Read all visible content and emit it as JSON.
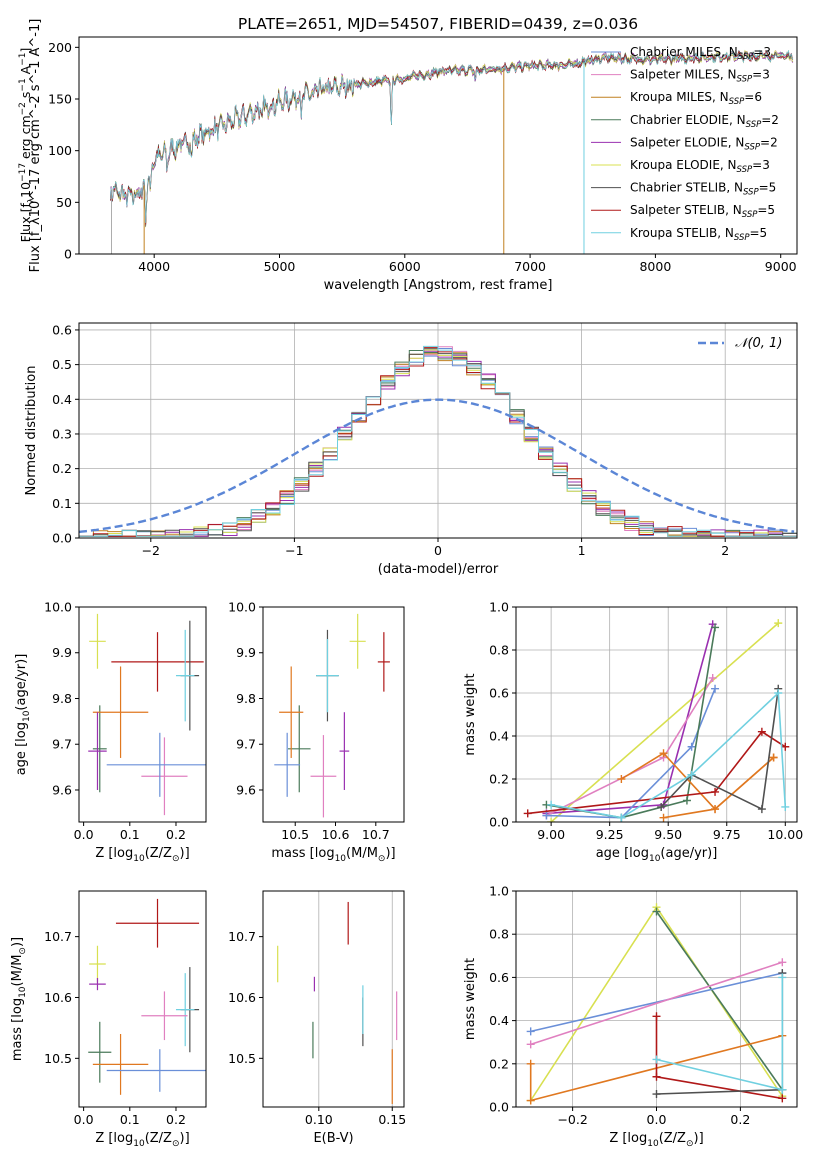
{
  "figure_title": "PLATE=2651, MJD=54507, FIBERID=0439, z=0.036",
  "colors": {
    "chabrier_miles": "#6a8fd8",
    "salpeter_miles": "#e080c0",
    "kroupa_miles": "#c08020",
    "chabrier_elodie": "#4a7a5a",
    "salpeter_elodie": "#9a30b0",
    "kroupa_elodie": "#d8e050",
    "chabrier_stelib": "#505050",
    "salpeter_stelib": "#b01818",
    "kroupa_stelib": "#70d0e0",
    "gauss": "#5b86d6",
    "orange": "#e07820"
  },
  "chart_data": [
    {
      "id": "spectrum",
      "type": "line",
      "xlabel": "wavelength [Angstrom, rest frame]",
      "ylabel": "Flux [f_λ10^-17 erg cm^-2 s^-1 A^-1]",
      "xlim": [
        3400,
        9130
      ],
      "ylim": [
        0,
        210
      ],
      "xticks": [
        4000,
        5000,
        6000,
        7000,
        8000,
        9000
      ],
      "yticks": [
        0,
        50,
        100,
        150,
        200
      ],
      "legend": "top-right",
      "legend_entries": [
        {
          "pre": "Chabrier MILES, N",
          "post": "=3",
          "color": "chabrier_miles"
        },
        {
          "pre": "Salpeter MILES, N",
          "post": "=3",
          "color": "salpeter_miles"
        },
        {
          "pre": "Kroupa MILES, N",
          "post": "=6",
          "color": "kroupa_miles"
        },
        {
          "pre": "Chabrier ELODIE, N",
          "post": "=2",
          "color": "chabrier_elodie"
        },
        {
          "pre": "Salpeter ELODIE, N",
          "post": "=2",
          "color": "salpeter_elodie"
        },
        {
          "pre": "Kroupa ELODIE, N",
          "post": "=3",
          "color": "kroupa_elodie"
        },
        {
          "pre": "Chabrier STELIB, N",
          "post": "=5",
          "color": "chabrier_stelib"
        },
        {
          "pre": "Salpeter STELIB, N",
          "post": "=5",
          "color": "salpeter_stelib"
        },
        {
          "pre": "Kroupa STELIB, N",
          "post": "=5",
          "color": "kroupa_stelib"
        }
      ],
      "legend_sub": "SSP",
      "continuum": [
        [
          3650,
          62
        ],
        [
          3800,
          55
        ],
        [
          3900,
          60
        ],
        [
          4000,
          92
        ],
        [
          4200,
          105
        ],
        [
          4500,
          122
        ],
        [
          4800,
          138
        ],
        [
          5000,
          147
        ],
        [
          5300,
          158
        ],
        [
          5600,
          164
        ],
        [
          6000,
          170
        ],
        [
          6300,
          177
        ],
        [
          6600,
          178
        ],
        [
          7000,
          182
        ],
        [
          7300,
          183
        ],
        [
          7600,
          190
        ],
        [
          8000,
          188
        ],
        [
          8500,
          191
        ],
        [
          9000,
          192
        ],
        [
          9100,
          191
        ]
      ],
      "absorptions": [
        [
          3934,
          40
        ],
        [
          3969,
          30
        ],
        [
          4102,
          15
        ],
        [
          4300,
          20
        ],
        [
          4861,
          12
        ],
        [
          5175,
          18
        ],
        [
          5270,
          10
        ],
        [
          5892,
          45
        ],
        [
          6563,
          10
        ]
      ],
      "model_cutoffs": [
        [
          7430,
          "kroupa_stelib"
        ],
        [
          6790,
          "kroupa_miles"
        ],
        [
          3920,
          "kroupa_miles"
        ]
      ]
    },
    {
      "id": "residual_hist",
      "type": "histogram",
      "xlabel": "(data-model)/error",
      "ylabel": "Normed distribution",
      "xlim": [
        -2.5,
        2.5
      ],
      "ylim": [
        0,
        0.62
      ],
      "xticks": [
        -2,
        -1,
        0,
        1,
        2
      ],
      "yticks": [
        0.0,
        0.1,
        0.2,
        0.3,
        0.4,
        0.5,
        0.6
      ],
      "grid": true,
      "bin_width": 0.1,
      "gaussian_label": "𝒩(0, 1)",
      "legend": "top-right"
    },
    {
      "id": "age_vs_Z",
      "type": "errorbar",
      "xlabel_pre": "Z [log",
      "xlabel_sub": "10",
      "xlabel_post": "(Z/Z",
      "ylabel_pre": "age  [log",
      "ylabel_sub": "10",
      "ylabel_post": "(age/yr)]",
      "xlim": [
        -0.01,
        0.265
      ],
      "ylim": [
        9.53,
        10.0
      ],
      "xticks": [
        0.0,
        0.1,
        0.2
      ],
      "yticks": [
        9.6,
        9.7,
        9.8,
        9.9,
        10.0
      ],
      "points": [
        {
          "x": 0.03,
          "y": 9.925,
          "xe": 0.018,
          "ye": 0.06,
          "color": "kroupa_elodie"
        },
        {
          "x": 0.16,
          "y": 9.88,
          "xe": 0.1,
          "ye": 0.065,
          "color": "salpeter_stelib"
        },
        {
          "x": 0.23,
          "y": 9.85,
          "xe": 0.02,
          "ye": 0.12,
          "color": "chabrier_stelib"
        },
        {
          "x": 0.22,
          "y": 9.85,
          "xe": 0.02,
          "ye": 0.1,
          "color": "kroupa_stelib"
        },
        {
          "x": 0.035,
          "y": 9.69,
          "xe": 0.015,
          "ye": 0.095,
          "color": "chabrier_elodie"
        },
        {
          "x": 0.08,
          "y": 9.77,
          "xe": 0.06,
          "ye": 0.1,
          "color": "orange"
        },
        {
          "x": 0.03,
          "y": 9.685,
          "xe": 0.02,
          "ye": 0.085,
          "color": "salpeter_elodie"
        },
        {
          "x": 0.175,
          "y": 9.63,
          "xe": 0.05,
          "ye": 0.085,
          "color": "salpeter_miles"
        },
        {
          "x": 0.165,
          "y": 9.655,
          "xe": 0.115,
          "ye": 0.07,
          "color": "chabrier_miles"
        }
      ]
    },
    {
      "id": "age_vs_mass",
      "type": "errorbar",
      "xlabel_pre": "mass [log",
      "xlabel_sub": "10",
      "xlabel_post": "(M/M",
      "xlim": [
        10.42,
        10.77
      ],
      "ylim": [
        9.53,
        10.0
      ],
      "xticks": [
        10.5,
        10.6,
        10.7
      ],
      "yticks": [
        9.6,
        9.7,
        9.8,
        9.9,
        10.0
      ],
      "points": [
        {
          "x": 10.655,
          "y": 9.925,
          "xe": 0.02,
          "ye": 0.06,
          "color": "kroupa_elodie"
        },
        {
          "x": 10.72,
          "y": 9.88,
          "xe": 0.015,
          "ye": 0.065,
          "color": "salpeter_stelib"
        },
        {
          "x": 10.58,
          "y": 9.85,
          "xe": 0.028,
          "ye": 0.1,
          "color": "chabrier_stelib"
        },
        {
          "x": 10.58,
          "y": 9.85,
          "xe": 0.028,
          "ye": 0.08,
          "color": "kroupa_stelib"
        },
        {
          "x": 10.51,
          "y": 9.69,
          "xe": 0.028,
          "ye": 0.095,
          "color": "chabrier_elodie"
        },
        {
          "x": 10.49,
          "y": 9.77,
          "xe": 0.03,
          "ye": 0.1,
          "color": "orange"
        },
        {
          "x": 10.622,
          "y": 9.685,
          "xe": 0.012,
          "ye": 0.085,
          "color": "salpeter_elodie"
        },
        {
          "x": 10.57,
          "y": 9.63,
          "xe": 0.032,
          "ye": 0.09,
          "color": "salpeter_miles"
        },
        {
          "x": 10.48,
          "y": 9.655,
          "xe": 0.032,
          "ye": 0.07,
          "color": "chabrier_miles"
        }
      ]
    },
    {
      "id": "weight_vs_age",
      "type": "line",
      "xlabel_pre": "age  [log",
      "xlabel_sub": "10",
      "xlabel_post": "(age/yr)]",
      "ylabel": "mass weight",
      "xlim": [
        8.85,
        10.05
      ],
      "ylim": [
        0,
        1
      ],
      "xticks": [
        9.0,
        9.25,
        9.5,
        9.75,
        10.0
      ],
      "yticks": [
        0.0,
        0.2,
        0.4,
        0.6,
        0.8,
        1.0
      ],
      "grid": true,
      "series": [
        {
          "color": "kroupa_elodie",
          "x": [
            9.0,
            9.97
          ],
          "y": [
            0.0,
            0.925
          ]
        },
        {
          "color": "salpeter_elodie",
          "x": [
            8.98,
            9.48,
            9.69
          ],
          "y": [
            0.04,
            0.08,
            0.92
          ]
        },
        {
          "color": "salpeter_miles",
          "x": [
            8.98,
            9.48,
            9.69
          ],
          "y": [
            0.03,
            0.3,
            0.67
          ]
        },
        {
          "color": "chabrier_miles",
          "x": [
            8.98,
            9.3,
            9.6,
            9.7
          ],
          "y": [
            0.03,
            0.02,
            0.35,
            0.62
          ]
        },
        {
          "color": "chabrier_elodie",
          "x": [
            8.98,
            9.3,
            9.58,
            9.7
          ],
          "y": [
            0.08,
            0.02,
            0.1,
            0.905
          ]
        },
        {
          "color": "orange",
          "x": [
            9.3,
            9.48,
            9.7,
            9.95
          ],
          "y": [
            0.2,
            0.32,
            0.06,
            0.3
          ]
        },
        {
          "color": "orange",
          "x": [
            9.48,
            9.7,
            9.95
          ],
          "y": [
            0.02,
            0.06,
            0.3
          ]
        },
        {
          "color": "salpeter_stelib",
          "x": [
            8.9,
            9.7,
            9.9,
            10.0
          ],
          "y": [
            0.04,
            0.14,
            0.42,
            0.35
          ]
        },
        {
          "color": "chabrier_stelib",
          "x": [
            9.47,
            9.6,
            9.9,
            9.97
          ],
          "y": [
            0.07,
            0.22,
            0.06,
            0.62
          ]
        },
        {
          "color": "kroupa_stelib",
          "x": [
            9.0,
            9.3,
            9.6,
            9.97,
            10.0
          ],
          "y": [
            0.08,
            0.02,
            0.22,
            0.6,
            0.07
          ]
        }
      ]
    },
    {
      "id": "mass_vs_Z",
      "type": "errorbar",
      "xlabel_pre": "Z [log",
      "xlabel_sub": "10",
      "xlabel_post": "(Z/Z",
      "ylabel_pre": "mass [log",
      "ylabel_sub": "10",
      "ylabel_post": "(M/M",
      "xlim": [
        -0.01,
        0.265
      ],
      "ylim": [
        10.42,
        10.775
      ],
      "xticks": [
        0.0,
        0.1,
        0.2
      ],
      "yticks": [
        10.5,
        10.6,
        10.7
      ],
      "points": [
        {
          "x": 0.03,
          "y": 10.655,
          "xe": 0.018,
          "ye": 0.03,
          "color": "kroupa_elodie"
        },
        {
          "x": 0.03,
          "y": 10.622,
          "xe": 0.018,
          "ye": 0.01,
          "color": "salpeter_elodie"
        },
        {
          "x": 0.16,
          "y": 10.722,
          "xe": 0.09,
          "ye": 0.04,
          "color": "salpeter_stelib"
        },
        {
          "x": 0.23,
          "y": 10.58,
          "xe": 0.02,
          "ye": 0.07,
          "color": "chabrier_stelib"
        },
        {
          "x": 0.22,
          "y": 10.58,
          "xe": 0.02,
          "ye": 0.06,
          "color": "kroupa_stelib"
        },
        {
          "x": 0.175,
          "y": 10.57,
          "xe": 0.05,
          "ye": 0.04,
          "color": "salpeter_miles"
        },
        {
          "x": 0.035,
          "y": 10.51,
          "xe": 0.025,
          "ye": 0.05,
          "color": "chabrier_elodie"
        },
        {
          "x": 0.08,
          "y": 10.49,
          "xe": 0.06,
          "ye": 0.05,
          "color": "orange"
        },
        {
          "x": 0.165,
          "y": 10.48,
          "xe": 0.115,
          "ye": 0.035,
          "color": "chabrier_miles"
        }
      ]
    },
    {
      "id": "mass_vs_EBV",
      "type": "errorbar",
      "xlabel": "E(B-V)",
      "xlim": [
        0.062,
        0.158
      ],
      "ylim": [
        10.42,
        10.775
      ],
      "xticks": [
        0.1,
        0.15
      ],
      "yticks": [
        10.5,
        10.6,
        10.7
      ],
      "grid_x": true,
      "points": [
        {
          "x": 0.072,
          "y": 10.655,
          "xe": 0,
          "ye": 0.03,
          "color": "kroupa_elodie"
        },
        {
          "x": 0.097,
          "y": 10.622,
          "xe": 0,
          "ye": 0.012,
          "color": "salpeter_elodie"
        },
        {
          "x": 0.12,
          "y": 10.722,
          "xe": 0,
          "ye": 0.035,
          "color": "salpeter_stelib"
        },
        {
          "x": 0.096,
          "y": 10.53,
          "xe": 0,
          "ye": 0.03,
          "color": "chabrier_elodie"
        },
        {
          "x": 0.13,
          "y": 10.56,
          "xe": 0,
          "ye": 0.04,
          "color": "chabrier_stelib"
        },
        {
          "x": 0.13,
          "y": 10.58,
          "xe": 0,
          "ye": 0.04,
          "color": "kroupa_stelib"
        },
        {
          "x": 0.153,
          "y": 10.57,
          "xe": 0,
          "ye": 0.04,
          "color": "salpeter_miles"
        },
        {
          "x": 0.15,
          "y": 10.47,
          "xe": 0,
          "ye": 0.045,
          "color": "orange"
        }
      ]
    },
    {
      "id": "weight_vs_Z",
      "type": "line",
      "xlabel_pre": "Z [log",
      "xlabel_sub": "10",
      "xlabel_post": "(Z/Z",
      "ylabel": "mass weight",
      "xlim": [
        -0.335,
        0.335
      ],
      "ylim": [
        0,
        1
      ],
      "xticks": [
        -0.2,
        0.0,
        0.2
      ],
      "yticks": [
        0.0,
        0.2,
        0.4,
        0.6,
        0.8,
        1.0
      ],
      "grid": true,
      "series": [
        {
          "color": "kroupa_elodie",
          "x": [
            -0.3,
            0.0,
            0.3
          ],
          "y": [
            0.03,
            0.925,
            0.05
          ]
        },
        {
          "color": "chabrier_elodie",
          "x": [
            0.0,
            0.3
          ],
          "y": [
            0.905,
            0.08
          ]
        },
        {
          "color": "chabrier_miles",
          "x": [
            -0.3,
            0.3
          ],
          "y": [
            0.35,
            0.62
          ]
        },
        {
          "color": "salpeter_miles",
          "x": [
            -0.3,
            0.3
          ],
          "y": [
            0.29,
            0.67
          ]
        },
        {
          "color": "orange",
          "x": [
            -0.3,
            -0.3,
            0.3
          ],
          "y": [
            0.2,
            0.03,
            0.33
          ]
        },
        {
          "color": "salpeter_stelib",
          "x": [
            0.0,
            0.0,
            0.3
          ],
          "y": [
            0.42,
            0.14,
            0.04
          ]
        },
        {
          "color": "chabrier_stelib",
          "x": [
            0.0,
            0.3,
            0.3
          ],
          "y": [
            0.06,
            0.08,
            0.62
          ]
        },
        {
          "color": "kroupa_stelib",
          "x": [
            0.0,
            0.3,
            0.3
          ],
          "y": [
            0.22,
            0.08,
            0.6
          ]
        }
      ]
    }
  ]
}
